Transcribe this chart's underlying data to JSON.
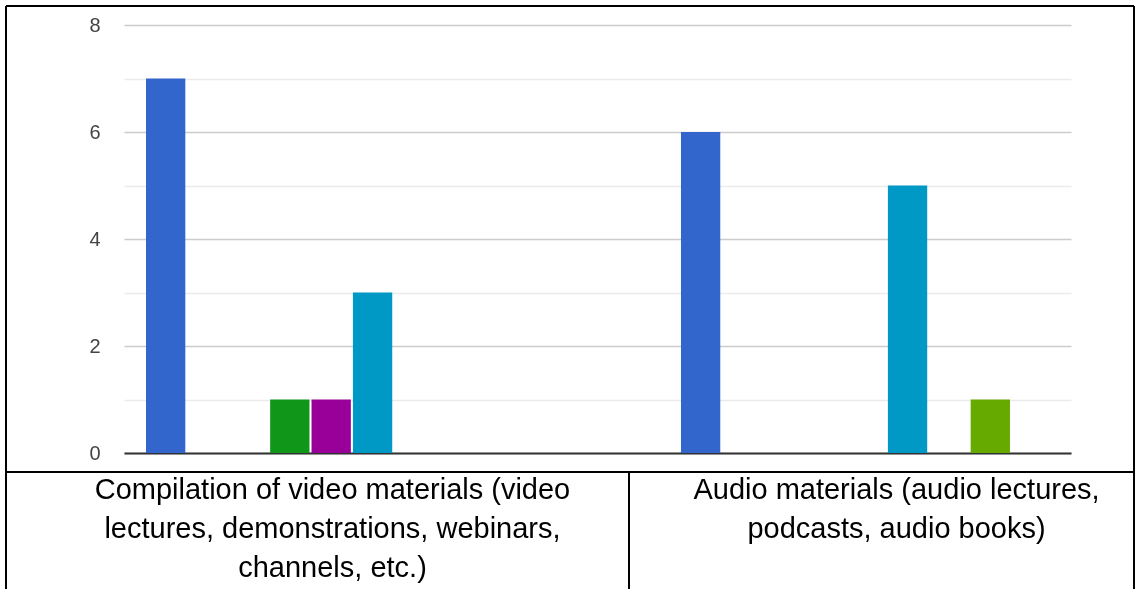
{
  "chart_data": {
    "type": "bar",
    "categories": [
      "Compilation of video materials (video lectures, demonstrations, webinars, channels, etc.)",
      "Audio materials (audio lectures, podcasts, audio books)"
    ],
    "series": [
      {
        "color": "#3366cc",
        "values": [
          7,
          6
        ]
      },
      {
        "color": "#dc3912",
        "values": [
          0,
          0
        ]
      },
      {
        "color": "#ff9900",
        "values": [
          0,
          0
        ]
      },
      {
        "color": "#109618",
        "values": [
          1,
          0
        ]
      },
      {
        "color": "#990099",
        "values": [
          1,
          0
        ]
      },
      {
        "color": "#0099c6",
        "values": [
          3,
          5
        ]
      },
      {
        "color": "#dd4477",
        "values": [
          0,
          0
        ]
      },
      {
        "color": "#66aa00",
        "values": [
          0,
          1
        ]
      }
    ],
    "ylim": [
      0,
      8
    ],
    "yticks": [
      0,
      {
        "value": 1,
        "label": null
      },
      2,
      {
        "value": 3,
        "label": null
      },
      4,
      {
        "value": 5,
        "label": null
      },
      6,
      {
        "value": 7,
        "label": null
      },
      8
    ],
    "grid": "y"
  }
}
